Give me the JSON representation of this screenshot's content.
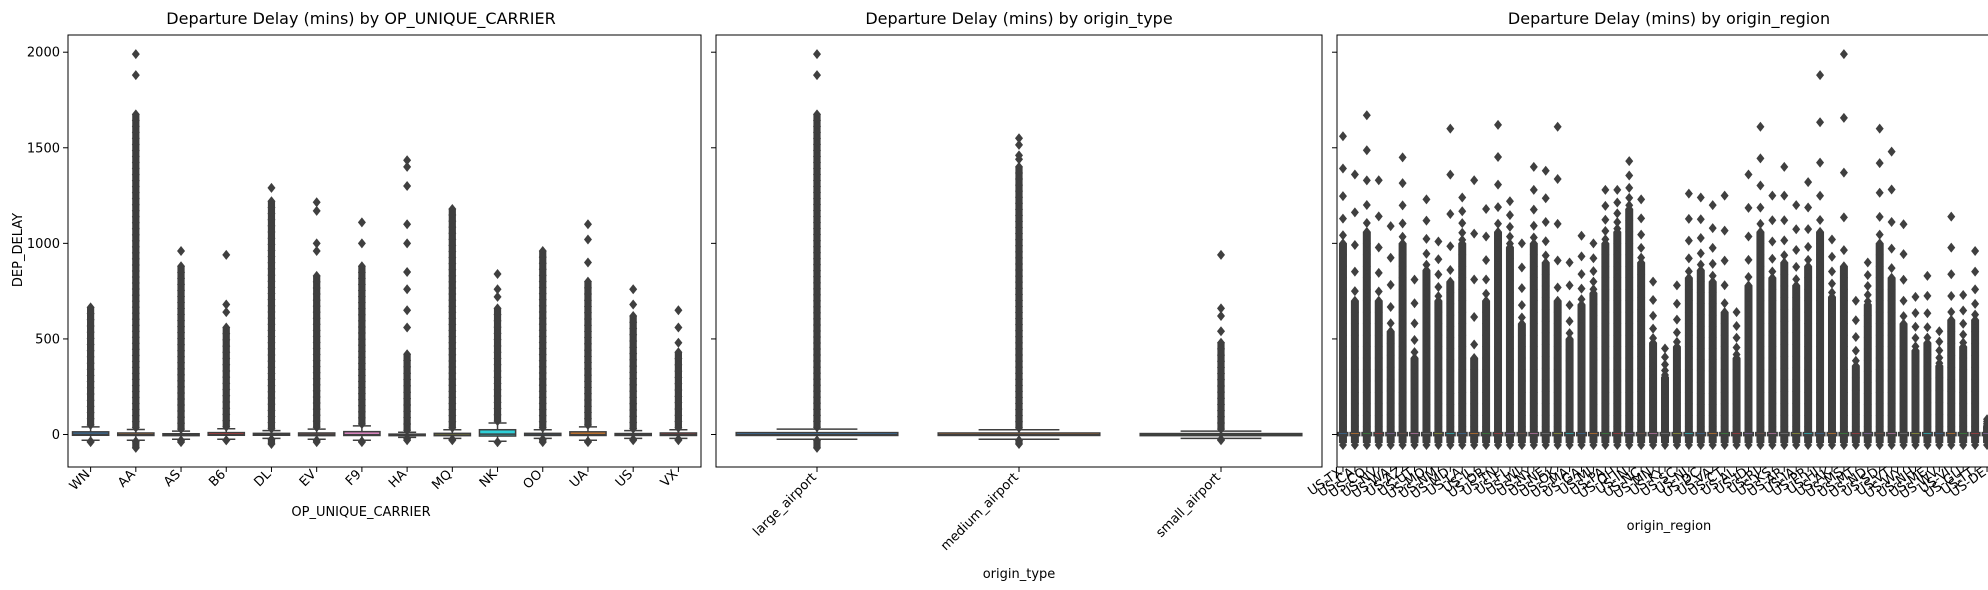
{
  "chart_data": [
    {
      "type": "box",
      "title": "Departure Delay (mins) by OP_UNIQUE_CARRIER",
      "xlabel": "OP_UNIQUE_CARRIER",
      "ylabel": "DEP_DELAY",
      "ylim": [
        -170,
        2090
      ],
      "yticks": [
        0,
        500,
        1000,
        1500,
        2000
      ],
      "grid": false,
      "categories": [
        "WN",
        "AA",
        "AS",
        "B6",
        "DL",
        "EV",
        "F9",
        "HA",
        "MQ",
        "NK",
        "OO",
        "UA",
        "US",
        "VX"
      ],
      "boxes": [
        {
          "q1": -4,
          "median": 1,
          "q3": 14,
          "whislo": -30,
          "whishi": 40,
          "fmax": 665,
          "extra": [],
          "fmin": -40
        },
        {
          "q1": -5,
          "median": -1,
          "q3": 8,
          "whislo": -30,
          "whishi": 26,
          "fmax": 1675,
          "extra": [
            1880,
            1990
          ],
          "fmin": -70
        },
        {
          "q1": -6,
          "median": -2,
          "q3": 4,
          "whislo": -25,
          "whishi": 18,
          "fmax": 880,
          "extra": [
            960
          ],
          "fmin": -40
        },
        {
          "q1": -4,
          "median": -1,
          "q3": 10,
          "whislo": -25,
          "whishi": 30,
          "fmax": 560,
          "extra": [
            640,
            680,
            940
          ],
          "fmin": -30
        },
        {
          "q1": -4,
          "median": -1,
          "q3": 6,
          "whislo": -20,
          "whishi": 20,
          "fmax": 1220,
          "extra": [
            1290
          ],
          "fmin": -50
        },
        {
          "q1": -6,
          "median": -2,
          "q3": 8,
          "whislo": -25,
          "whishi": 28,
          "fmax": 830,
          "extra": [
            960,
            1000,
            1170,
            1215
          ],
          "fmin": -40
        },
        {
          "q1": -5,
          "median": -1,
          "q3": 15,
          "whislo": -30,
          "whishi": 45,
          "fmax": 880,
          "extra": [
            1000,
            1110
          ],
          "fmin": -40
        },
        {
          "q1": -6,
          "median": -3,
          "q3": 2,
          "whislo": -15,
          "whishi": 12,
          "fmax": 420,
          "extra": [
            560,
            650,
            760,
            850,
            1000,
            1100,
            1300,
            1400,
            1435
          ],
          "fmin": -30
        },
        {
          "q1": -6,
          "median": -3,
          "q3": 6,
          "whislo": -20,
          "whishi": 25,
          "fmax": 1180,
          "extra": [],
          "fmin": -30
        },
        {
          "q1": -8,
          "median": 2,
          "q3": 25,
          "whislo": -35,
          "whishi": 60,
          "fmax": 660,
          "extra": [
            720,
            760,
            840
          ],
          "fmin": -40
        },
        {
          "q1": -5,
          "median": -2,
          "q3": 6,
          "whislo": -20,
          "whishi": 25,
          "fmax": 960,
          "extra": [],
          "fmin": -40
        },
        {
          "q1": -5,
          "median": 0,
          "q3": 14,
          "whislo": -30,
          "whishi": 40,
          "fmax": 800,
          "extra": [
            900,
            1020,
            1100
          ],
          "fmin": -40
        },
        {
          "q1": -5,
          "median": -1,
          "q3": 5,
          "whislo": -20,
          "whishi": 20,
          "fmax": 620,
          "extra": [
            680,
            760
          ],
          "fmin": -30
        },
        {
          "q1": -5,
          "median": -1,
          "q3": 8,
          "whislo": -20,
          "whishi": 25,
          "fmax": 430,
          "extra": [
            480,
            560,
            650
          ],
          "fmin": -30
        }
      ]
    },
    {
      "type": "box",
      "title": "Departure Delay (mins) by origin_type",
      "xlabel": "origin_type",
      "ylabel": "",
      "ylim": [
        -170,
        2090
      ],
      "yticks": [
        0,
        500,
        1000,
        1500,
        2000
      ],
      "grid": false,
      "categories": [
        "large_airport",
        "medium_airport",
        "small_airport"
      ],
      "boxes": [
        {
          "q1": -5,
          "median": -1,
          "q3": 10,
          "whislo": -25,
          "whishi": 28,
          "fmax": 1675,
          "extra": [
            1880,
            1990
          ],
          "fmin": -70
        },
        {
          "q1": -5,
          "median": -1,
          "q3": 8,
          "whislo": -25,
          "whishi": 25,
          "fmax": 1400,
          "extra": [
            1440,
            1460,
            1515,
            1550
          ],
          "fmin": -50
        },
        {
          "q1": -6,
          "median": -2,
          "q3": 5,
          "whislo": -20,
          "whishi": 18,
          "fmax": 480,
          "extra": [
            540,
            620,
            660,
            940
          ],
          "fmin": -30
        }
      ]
    },
    {
      "type": "box",
      "title": "Departure Delay (mins) by origin_region",
      "xlabel": "origin_region",
      "ylabel": "",
      "ylim": [
        -170,
        2090
      ],
      "yticks": [
        0,
        500,
        1000,
        1500,
        2000
      ],
      "grid": false,
      "categories": [
        "US-TX",
        "US-CA",
        "US-CO",
        "US-NV",
        "US-WA",
        "US-AZ",
        "US-UT",
        "US-MO",
        "US-NM",
        "US-MD",
        "US-LA",
        "US-IL",
        "US-OR",
        "US-TN",
        "US-FL",
        "US-WI",
        "US-NY",
        "US-NE",
        "US-OK",
        "US-MA",
        "US-GA",
        "US-MI",
        "US-PA",
        "US-OH",
        "US-IN",
        "US-NC",
        "US-MN",
        "US-KY",
        "US-SC",
        "US-NJ",
        "US-DC",
        "US-VA",
        "US-CT",
        "US-AL",
        "US-ID",
        "US-RI",
        "US-KS",
        "US-AR",
        "US-IA",
        "US-PR",
        "US-HI",
        "US-AK",
        "US-MS",
        "US-MT",
        "US-ND",
        "US-SD",
        "US-VT",
        "US-WY",
        "US-NH",
        "US-ME",
        "US-WV",
        "US-VI",
        "US-GU",
        "US-TT",
        "US-DE"
      ],
      "extremes": [
        [
          1000,
          1560
        ],
        [
          700,
          1360
        ],
        [
          1060,
          1670
        ],
        [
          700,
          1330
        ],
        [
          540,
          1090
        ],
        [
          1000,
          1450
        ],
        [
          400,
          810
        ],
        [
          860,
          1230
        ],
        [
          700,
          1010
        ],
        [
          800,
          1600
        ],
        [
          1000,
          1240
        ],
        [
          400,
          1330
        ],
        [
          700,
          1180
        ],
        [
          1060,
          1620
        ],
        [
          980,
          1220
        ],
        [
          580,
          1000
        ],
        [
          1000,
          1400
        ],
        [
          900,
          1380
        ],
        [
          700,
          1610
        ],
        [
          500,
          900
        ],
        [
          680,
          1040
        ],
        [
          740,
          1000
        ],
        [
          1000,
          1280
        ],
        [
          1060,
          1280
        ],
        [
          1180,
          1430
        ],
        [
          900,
          1230
        ],
        [
          480,
          800
        ],
        [
          300,
          450
        ],
        [
          460,
          780
        ],
        [
          820,
          1260
        ],
        [
          860,
          1240
        ],
        [
          800,
          1200
        ],
        [
          640,
          1250
        ],
        [
          400,
          640
        ],
        [
          780,
          1360
        ],
        [
          1060,
          1610
        ],
        [
          820,
          1250
        ],
        [
          900,
          1400
        ],
        [
          780,
          1200
        ],
        [
          880,
          1320
        ],
        [
          1060,
          1880
        ],
        [
          720,
          1020
        ],
        [
          880,
          1990
        ],
        [
          360,
          700
        ],
        [
          680,
          900
        ],
        [
          1000,
          1600
        ],
        [
          820,
          1480
        ],
        [
          580,
          1100
        ],
        [
          440,
          720
        ],
        [
          480,
          830
        ],
        [
          360,
          540
        ],
        [
          600,
          1140
        ],
        [
          460,
          730
        ],
        [
          600,
          960
        ],
        [
          40,
          80
        ]
      ]
    }
  ]
}
